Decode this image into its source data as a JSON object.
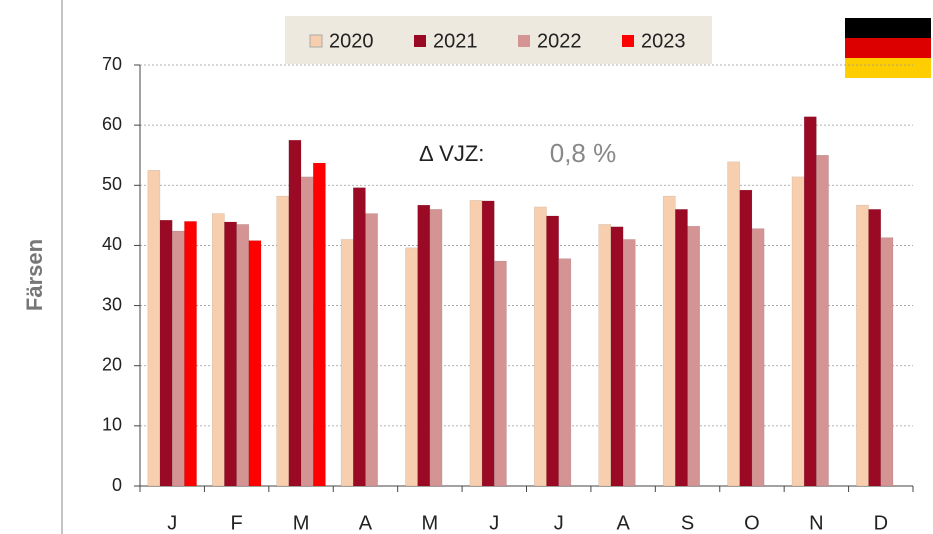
{
  "chart_data": {
    "type": "bar",
    "y_label": "Färsen",
    "categories": [
      "J",
      "F",
      "M",
      "A",
      "M",
      "J",
      "J",
      "A",
      "S",
      "O",
      "N",
      "D"
    ],
    "series": [
      {
        "name": "2020",
        "color": "#f8cfae",
        "values": [
          52.5,
          45.3,
          48.2,
          41.0,
          39.6,
          47.5,
          46.4,
          43.5,
          48.2,
          53.9,
          51.4,
          46.7
        ]
      },
      {
        "name": "2021",
        "color": "#9b0a24",
        "values": [
          44.2,
          43.9,
          57.5,
          49.6,
          46.7,
          47.4,
          44.9,
          43.1,
          46.0,
          49.2,
          61.4,
          46.0
        ]
      },
      {
        "name": "2022",
        "color": "#d49494",
        "values": [
          42.4,
          43.5,
          51.4,
          45.3,
          46.0,
          37.4,
          37.8,
          41.0,
          43.2,
          42.8,
          55.0,
          41.3
        ]
      },
      {
        "name": "2023",
        "color": "#ff0000",
        "values": [
          44.0,
          40.8,
          53.7,
          null,
          null,
          null,
          null,
          null,
          null,
          null,
          null,
          null
        ]
      }
    ],
    "annotation_label": "∆ VJZ:",
    "annotation_value": "0,8 %",
    "ylim": [
      0,
      70
    ],
    "yticks": [
      0,
      10,
      20,
      30,
      40,
      50,
      60,
      70
    ],
    "grid": true
  }
}
